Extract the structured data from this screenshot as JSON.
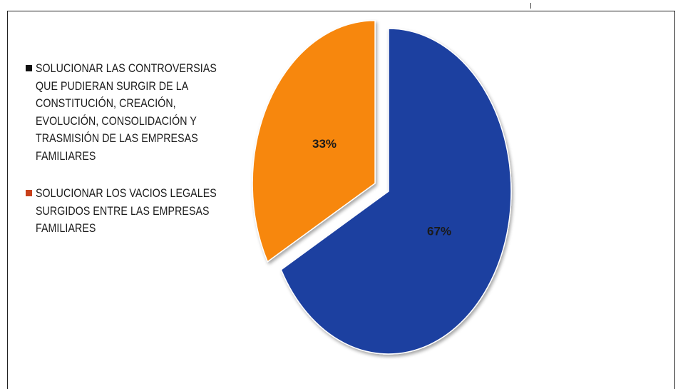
{
  "chart_data": {
    "type": "pie",
    "title": "",
    "legend_position": "left",
    "slices": [
      {
        "label": "SOLUCIONAR LAS CONTROVERSIAS QUE PUDIERAN SURGIR DE LA CONSTITUCIÓN, CREACIÓN, EVOLUCIÓN, CONSOLIDACIÓN Y TRASMISIÓN DE LAS EMPRESAS FAMILIARES",
        "value": 67,
        "display": "67%",
        "color": "#1f3fa0",
        "legend_color": "#111111"
      },
      {
        "label": "SOLUCIONAR LOS VACIOS LEGALES SURGIDOS ENTRE LAS EMPRESAS FAMILIARES",
        "value": 33,
        "display": "33%",
        "color": "#f7870f",
        "legend_color": "#c8401a"
      }
    ]
  }
}
